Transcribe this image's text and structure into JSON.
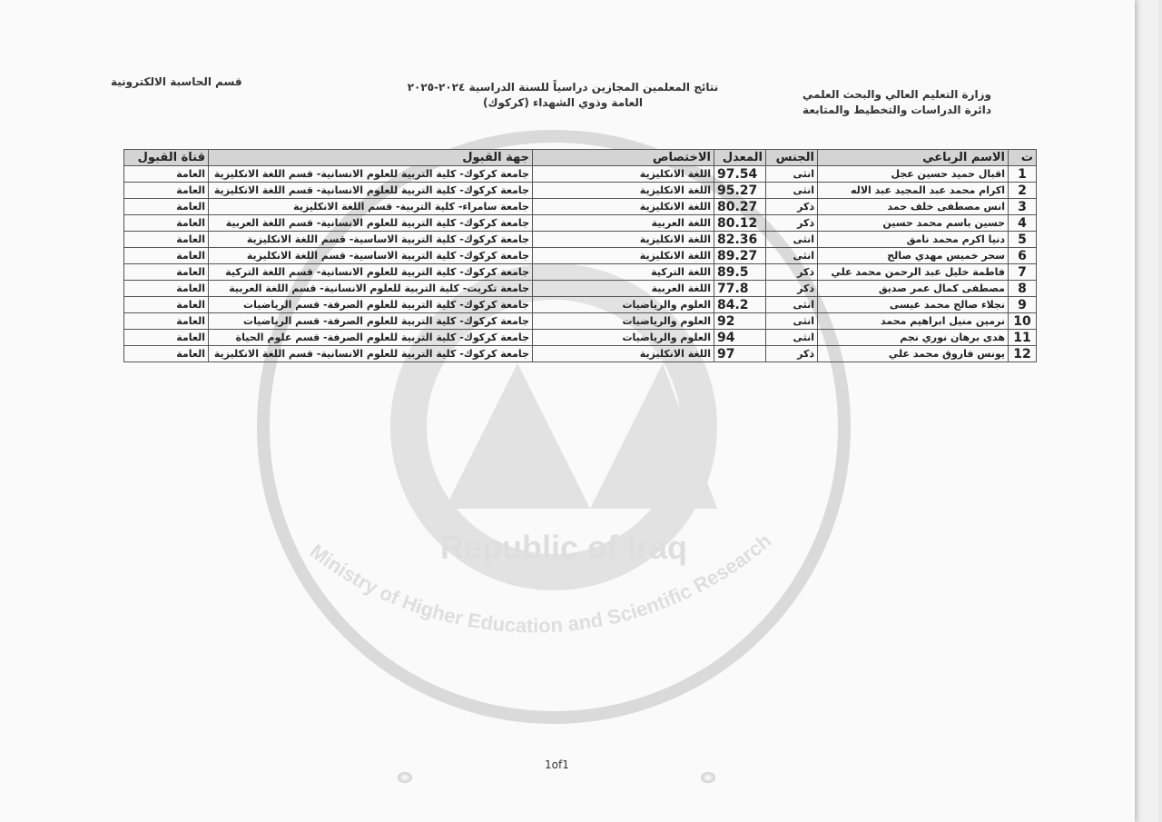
{
  "header": {
    "ministry": "وزارة التعليم العالي والبحث العلمي",
    "directorate": "دائرة الدراسات والتخطيط والمتابعة",
    "title_line1": "نتائج المعلمين المجازين دراسياً للسنة الدراسية ٢٠٢٤-٢٠٢٥",
    "title_line2": "العامة وذوي الشهداء (كركوك)",
    "department": "قسم الحاسبة الالكترونية"
  },
  "watermark": {
    "text": "Ministry of Higher Education and Scientific Research",
    "country": "Republic of Iraq"
  },
  "table": {
    "columns": [
      "ت",
      "الاسم الرباعي",
      "الجنس",
      "المعدل",
      "الاختصاص",
      "جهة القبول",
      "قناة القبول"
    ],
    "rows": [
      [
        "1",
        "اقبال حميد حسين عجل",
        "انثى",
        "97.54",
        "اللغة الانكليزية",
        "جامعة كركوك- كلية التربية للعلوم الانسانية- قسم اللغة الانكليزية",
        "العامة"
      ],
      [
        "2",
        "اكرام محمد عبد المجيد عبد الاله",
        "انثى",
        "95.27",
        "اللغة الانكليزية",
        "جامعة كركوك- كلية التربية للعلوم الانسانية- قسم اللغة الانكليزية",
        "العامة"
      ],
      [
        "3",
        "انس مصطفى خلف حمد",
        "ذكر",
        "80.27",
        "اللغة الانكليزية",
        "جامعة سامراء- كلية التربية- قسم اللغة الانكليزية",
        "العامة"
      ],
      [
        "4",
        "حسين باسم محمد حسين",
        "ذكر",
        "80.12",
        "اللغة العربية",
        "جامعة كركوك- كلية التربية للعلوم الانسانية- قسم اللغة العربية",
        "العامة"
      ],
      [
        "5",
        "دنيا اكرم محمد نامق",
        "انثى",
        "82.36",
        "اللغة الانكليزية",
        "جامعة كركوك- كلية التربية الاساسية- قسم اللغة الانكليزية",
        "العامة"
      ],
      [
        "6",
        "سحر خميس مهدي صالح",
        "انثى",
        "89.27",
        "اللغة الانكليزية",
        "جامعة كركوك- كلية التربية الاساسية- قسم اللغة الانكليزية",
        "العامة"
      ],
      [
        "7",
        "فاطمة خليل عبد الرحمن محمد علي",
        "ذكر",
        "89.5",
        "اللغة التركية",
        "جامعة كركوك- كلية التربية للعلوم الانسانية- قسم اللغة التركية",
        "العامة"
      ],
      [
        "8",
        "مصطفى كمال عمر صديق",
        "ذكر",
        "77.8",
        "اللغة العربية",
        "جامعة تكريت- كلية التربية للعلوم الانسانية- قسم اللغة العربية",
        "العامة"
      ],
      [
        "9",
        "نجلاء صالح محمد عيسى",
        "انثى",
        "84.2",
        "العلوم والرياضيات",
        "جامعة كركوك- كلية التربية للعلوم الصرفة- قسم الرياضيات",
        "العامة"
      ],
      [
        "10",
        "نرمين منيل ابراهيم محمد",
        "انثى",
        "92",
        "العلوم والرياضيات",
        "جامعة كركوك- كلية التربية للعلوم الصرفة- قسم الرياضيات",
        "العامة"
      ],
      [
        "11",
        "هدى برهان نوري نجم",
        "انثى",
        "94",
        "العلوم والرياضيات",
        "جامعة كركوك- كلية التربية للعلوم الصرفة- قسم علوم الحياة",
        "العامة"
      ],
      [
        "12",
        "يونس فاروق محمد علي",
        "ذكر",
        "97",
        "اللغة الانكليزية",
        "جامعة كركوك- كلية التربية للعلوم الانسانية- قسم اللغة الانكليزية",
        "العامة"
      ]
    ]
  },
  "footer": {
    "page": "1of1"
  }
}
